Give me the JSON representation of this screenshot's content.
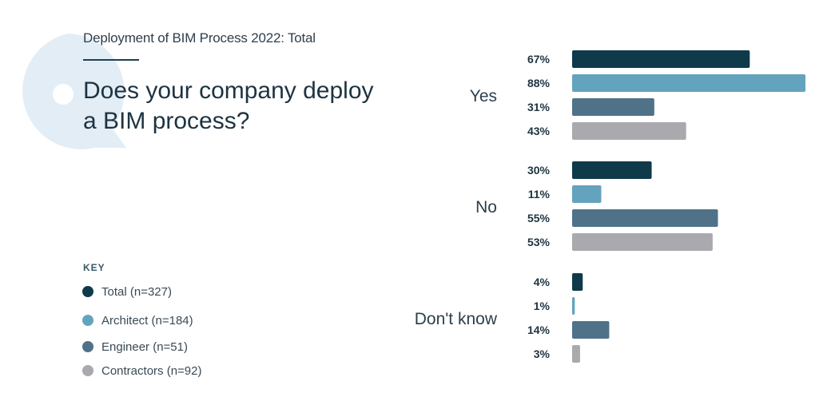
{
  "header": {
    "subtitle": "Deployment of BIM Process 2022: Total",
    "question": "Does your company deploy a BIM process?"
  },
  "legend": {
    "title": "KEY",
    "items": [
      {
        "label": "Total (n=327)",
        "color": "#0e3a4a"
      },
      {
        "label": "Architect (n=184)",
        "color": "#64a3bd"
      },
      {
        "label": "Engineer (n=51)",
        "color": "#4f7288"
      },
      {
        "label": "Contractors (n=92)",
        "color": "#a9a9ae"
      }
    ]
  },
  "chart_data": {
    "type": "bar",
    "orientation": "horizontal",
    "title": "Does your company deploy a BIM process?",
    "subtitle": "Deployment of BIM Process 2022: Total",
    "categories": [
      "Yes",
      "No",
      "Don't know"
    ],
    "unit": "%",
    "series": [
      {
        "name": "Total (n=327)",
        "color": "#0e3a4a",
        "values": [
          67,
          30,
          4
        ]
      },
      {
        "name": "Architect (n=184)",
        "color": "#64a3bd",
        "values": [
          88,
          11,
          1
        ]
      },
      {
        "name": "Engineer (n=51)",
        "color": "#4f7288",
        "values": [
          31,
          55,
          14
        ]
      },
      {
        "name": "Contractors (n=92)",
        "color": "#a9a9ae",
        "values": [
          43,
          53,
          3
        ]
      }
    ],
    "xlim": [
      0,
      100
    ],
    "grid": false,
    "legend_position": "bottom-left"
  }
}
